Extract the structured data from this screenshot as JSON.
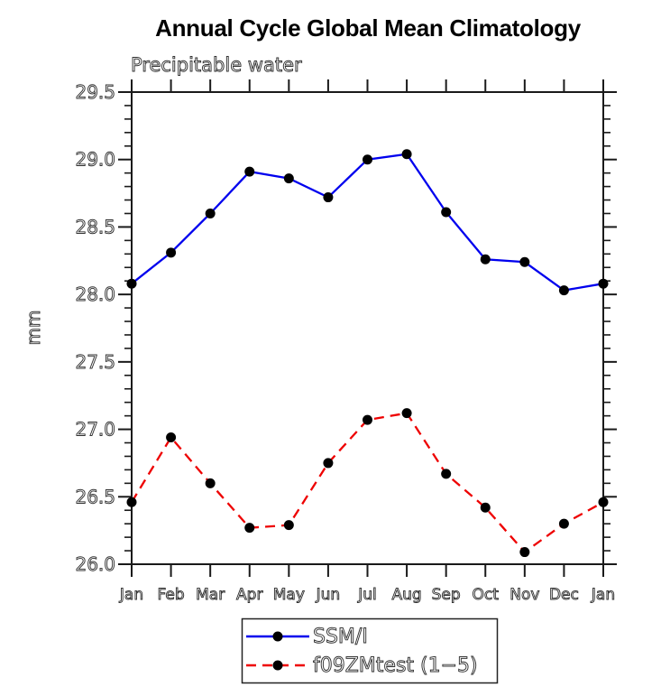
{
  "chart_data": {
    "type": "line",
    "title": "Annual Cycle Global Mean Climatology",
    "subtitle": "Precipitable water",
    "xlabel": "",
    "ylabel": "mm",
    "x_tick_labels": [
      "Jan",
      "Feb",
      "Mar",
      "Apr",
      "May",
      "Jun",
      "Jul",
      "Aug",
      "Sep",
      "Oct",
      "Nov",
      "Dec",
      "Jan"
    ],
    "y_ticks": [
      26.0,
      26.5,
      27.0,
      27.5,
      28.0,
      28.5,
      29.0,
      29.5
    ],
    "y_minor_tick_step": 0.1,
    "ylim": [
      26.0,
      29.5
    ],
    "grid": false,
    "frame": "box-with-outward-ticks",
    "legend_position": "bottom-center",
    "axis_color": "#1a1a1a",
    "label_color": "#333333",
    "marker_color": "#000000",
    "series": [
      {
        "name": "SSM/I",
        "color": "#0000ee",
        "line_style": "solid",
        "marker": "filled-circle",
        "values": [
          28.08,
          28.31,
          28.6,
          28.91,
          28.86,
          28.72,
          29.0,
          29.04,
          28.61,
          28.26,
          28.24,
          28.03,
          28.08
        ]
      },
      {
        "name": "f09ZMtest (1−5)",
        "color": "#ee0000",
        "line_style": "dashed",
        "marker": "filled-circle",
        "values": [
          26.46,
          26.94,
          26.6,
          26.27,
          26.29,
          26.75,
          27.07,
          27.12,
          26.67,
          26.42,
          26.09,
          26.3,
          26.46
        ]
      }
    ]
  }
}
